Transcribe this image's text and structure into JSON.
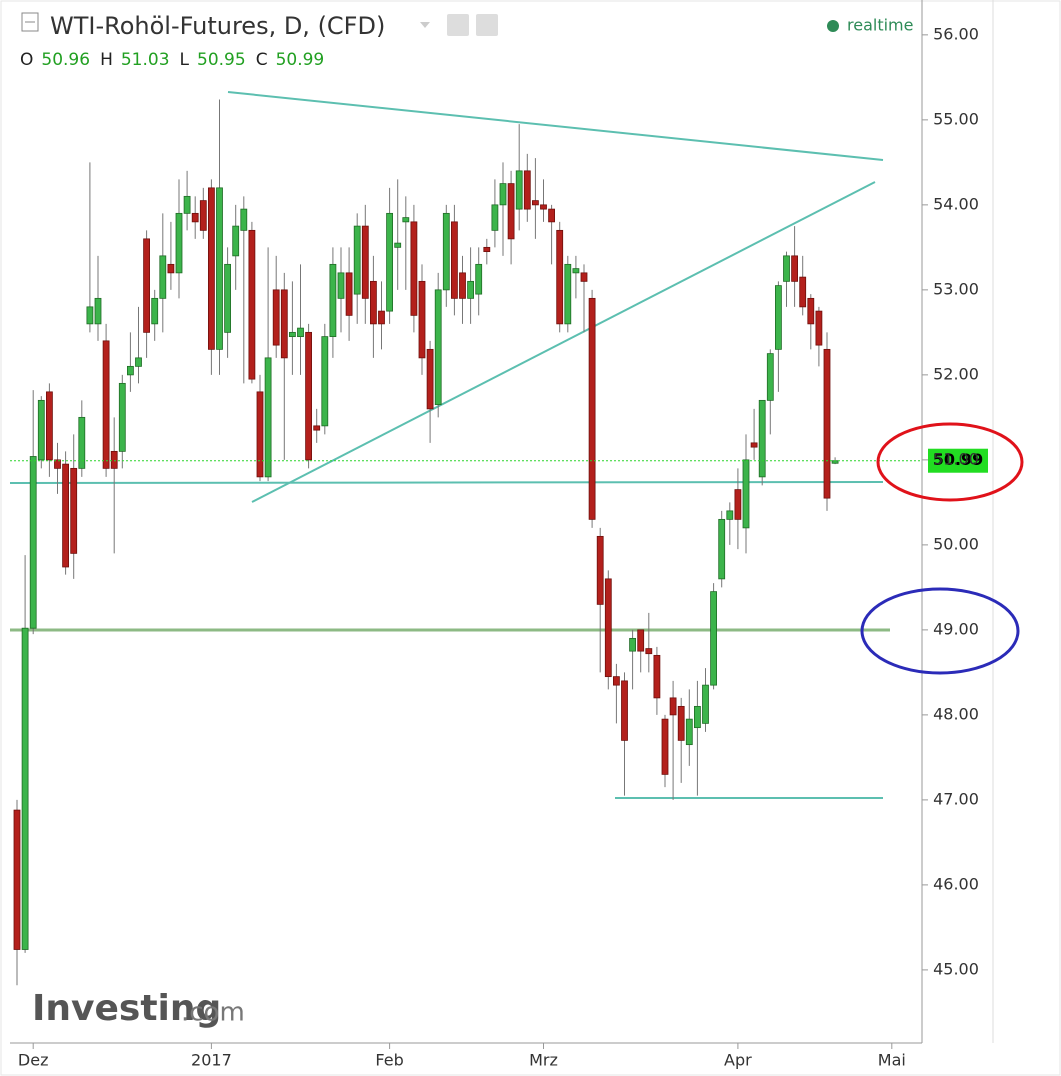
{
  "chart_data": {
    "type": "candlestick",
    "title": "WTI-Rohöl-Futures, D, (CFD)",
    "status": "realtime",
    "ohlc_header": [
      {
        "label": "O",
        "value": 50.96
      },
      {
        "label": "H",
        "value": 51.03
      },
      {
        "label": "L",
        "value": 50.95
      },
      {
        "label": "C",
        "value": 50.99
      }
    ],
    "last_price": 50.99,
    "brand": {
      "name": "Investing",
      "suffix": ".com"
    },
    "up_color": "#3cb44b",
    "down_color": "#b3201c",
    "categories": [
      null,
      null,
      "Dez",
      null,
      null,
      null,
      null,
      null,
      null,
      null,
      null,
      null,
      null,
      null,
      null,
      null,
      null,
      null,
      null,
      null,
      null,
      null,
      null,
      null,
      "2017",
      null,
      null,
      null,
      null,
      null,
      null,
      null,
      null,
      null,
      null,
      null,
      null,
      null,
      null,
      null,
      null,
      null,
      null,
      null,
      null,
      null,
      "Feb",
      null,
      null,
      null,
      null,
      null,
      null,
      null,
      null,
      null,
      null,
      null,
      null,
      null,
      null,
      null,
      null,
      null,
      null,
      "Mrz",
      null,
      null,
      null,
      null,
      null,
      null,
      null,
      null,
      null,
      null,
      null,
      null,
      null,
      null,
      null,
      null,
      null,
      null,
      null,
      null,
      null,
      null,
      null,
      "Apr",
      null,
      null,
      null,
      null,
      null,
      null,
      null,
      null,
      null,
      null,
      null,
      null,
      null,
      null,
      null,
      null,
      null,
      null,
      "Mai",
      null
    ],
    "open": [
      46.88,
      45.24,
      49.02,
      51.0,
      51.8,
      51.0,
      50.95,
      50.9,
      50.9,
      52.6,
      52.6,
      52.4,
      51.1,
      51.1,
      52.0,
      52.1,
      53.6,
      52.6,
      52.9,
      53.3,
      53.2,
      53.9,
      53.9,
      54.05,
      54.2,
      52.3,
      52.5,
      53.4,
      53.7,
      53.7,
      51.8,
      50.8,
      53.0,
      53.0,
      52.45,
      52.45,
      52.5,
      51.4,
      51.4,
      52.45,
      52.9,
      53.2,
      52.95,
      53.75,
      53.1,
      52.75,
      52.75,
      53.5,
      53.8,
      53.8,
      53.1,
      52.3,
      51.65,
      53.0,
      53.8,
      53.2,
      52.9,
      52.95,
      53.5,
      53.7,
      54.0,
      54.25,
      53.95,
      54.4,
      54.05,
      54.0,
      53.95,
      53.7,
      52.6,
      53.2,
      53.2,
      52.9,
      50.1,
      49.6,
      48.45,
      48.4,
      48.75,
      49.0,
      48.78,
      48.7,
      47.95,
      48.2,
      48.1,
      47.65,
      47.85,
      47.9,
      48.35,
      49.6,
      50.3,
      50.65,
      50.2,
      51.2,
      50.8,
      51.7,
      52.3,
      53.1,
      53.4,
      53.15,
      52.9,
      52.75,
      52.3,
      50.96,
      null,
      null,
      null,
      null,
      null,
      null,
      null,
      null
    ],
    "high": [
      47.0,
      49.88,
      51.82,
      51.75,
      51.9,
      51.2,
      51.1,
      51.3,
      51.7,
      54.5,
      53.4,
      52.6,
      51.5,
      52.0,
      52.5,
      52.8,
      53.7,
      53.0,
      53.9,
      53.8,
      54.3,
      54.4,
      54.1,
      54.2,
      54.3,
      55.24,
      53.5,
      54.0,
      54.1,
      53.8,
      52.0,
      53.5,
      53.4,
      53.2,
      53.1,
      53.3,
      52.6,
      51.6,
      52.6,
      53.5,
      53.5,
      53.5,
      53.9,
      54.0,
      53.4,
      53.1,
      54.2,
      54.3,
      54.1,
      54.0,
      53.3,
      52.4,
      53.2,
      54.0,
      54.0,
      53.4,
      53.5,
      53.5,
      53.6,
      54.3,
      54.5,
      54.4,
      54.95,
      54.6,
      54.55,
      54.3,
      54.0,
      53.8,
      53.4,
      53.4,
      53.3,
      53.0,
      50.2,
      49.7,
      48.6,
      48.5,
      49.0,
      49.0,
      49.2,
      48.8,
      48.0,
      48.4,
      48.2,
      48.3,
      48.4,
      48.55,
      49.55,
      50.4,
      50.5,
      50.9,
      51.3,
      51.6,
      51.7,
      52.3,
      53.1,
      53.45,
      53.75,
      53.4,
      52.95,
      52.8,
      52.5,
      51.03,
      null,
      null,
      null,
      null,
      null,
      null,
      null,
      null
    ],
    "low": [
      44.82,
      45.2,
      48.95,
      50.9,
      50.8,
      50.6,
      49.65,
      49.6,
      50.8,
      52.5,
      52.4,
      50.8,
      49.9,
      50.9,
      51.8,
      51.9,
      52.2,
      52.4,
      52.5,
      53.0,
      52.9,
      53.7,
      53.6,
      53.6,
      52.0,
      52.0,
      52.2,
      53.0,
      51.9,
      51.9,
      50.75,
      50.75,
      52.2,
      51.0,
      52.0,
      52.0,
      50.9,
      51.2,
      51.3,
      52.2,
      52.5,
      52.4,
      52.6,
      52.6,
      52.2,
      52.3,
      52.6,
      53.0,
      53.0,
      52.5,
      52.0,
      51.2,
      51.5,
      52.8,
      52.7,
      52.6,
      52.6,
      52.7,
      53.3,
      53.5,
      53.4,
      53.3,
      53.7,
      53.8,
      53.6,
      53.8,
      53.3,
      52.5,
      52.5,
      52.9,
      52.5,
      50.2,
      48.5,
      48.3,
      47.9,
      47.05,
      48.3,
      48.5,
      48.5,
      48.0,
      47.15,
      47.0,
      47.2,
      47.4,
      47.05,
      47.8,
      48.3,
      49.5,
      50.0,
      49.95,
      49.9,
      51.0,
      50.7,
      51.3,
      51.8,
      52.8,
      52.8,
      52.7,
      52.3,
      52.1,
      50.4,
      50.95,
      null,
      null,
      null,
      null,
      null,
      null,
      null,
      null
    ],
    "close": [
      45.24,
      49.02,
      51.04,
      51.7,
      51.0,
      50.9,
      49.74,
      49.9,
      51.5,
      52.8,
      52.9,
      50.9,
      50.9,
      51.9,
      52.1,
      52.2,
      52.5,
      52.9,
      53.4,
      53.2,
      53.9,
      54.1,
      53.8,
      53.7,
      52.3,
      54.2,
      53.3,
      53.75,
      53.95,
      51.95,
      50.8,
      52.2,
      52.35,
      52.2,
      52.5,
      52.55,
      51.0,
      51.35,
      52.45,
      53.3,
      53.2,
      52.7,
      53.75,
      52.9,
      52.6,
      52.6,
      53.9,
      53.55,
      53.85,
      52.7,
      52.2,
      51.6,
      53.0,
      53.9,
      52.9,
      52.9,
      53.1,
      53.3,
      53.45,
      54.0,
      54.25,
      53.6,
      54.4,
      53.95,
      54.0,
      53.95,
      53.8,
      52.6,
      53.3,
      53.25,
      53.1,
      50.3,
      49.3,
      48.45,
      48.35,
      47.7,
      48.9,
      48.75,
      48.72,
      48.2,
      47.3,
      48.0,
      47.7,
      47.95,
      48.1,
      48.35,
      49.45,
      50.3,
      50.4,
      50.3,
      51.0,
      51.15,
      51.7,
      52.25,
      53.05,
      53.4,
      53.1,
      52.8,
      52.6,
      52.35,
      50.55,
      50.99,
      null,
      null,
      null,
      null,
      null,
      null,
      null,
      null
    ],
    "ylim": [
      44.14,
      56.41
    ],
    "yticks": [
      {
        "value": 45,
        "label": "45.00"
      },
      {
        "value": 46,
        "label": "46.00"
      },
      {
        "value": 47,
        "label": "47.00"
      },
      {
        "value": 48,
        "label": "48.00"
      },
      {
        "value": 49,
        "label": "49.00"
      },
      {
        "value": 50,
        "label": "50.00"
      },
      {
        "value": 51,
        "label": "51.00"
      },
      {
        "value": 52,
        "label": "52.00"
      },
      {
        "value": 53,
        "label": "53.00"
      },
      {
        "value": 54,
        "label": "54.00"
      },
      {
        "value": 55,
        "label": "55.00"
      },
      {
        "value": 56,
        "label": "56.00"
      }
    ]
  }
}
